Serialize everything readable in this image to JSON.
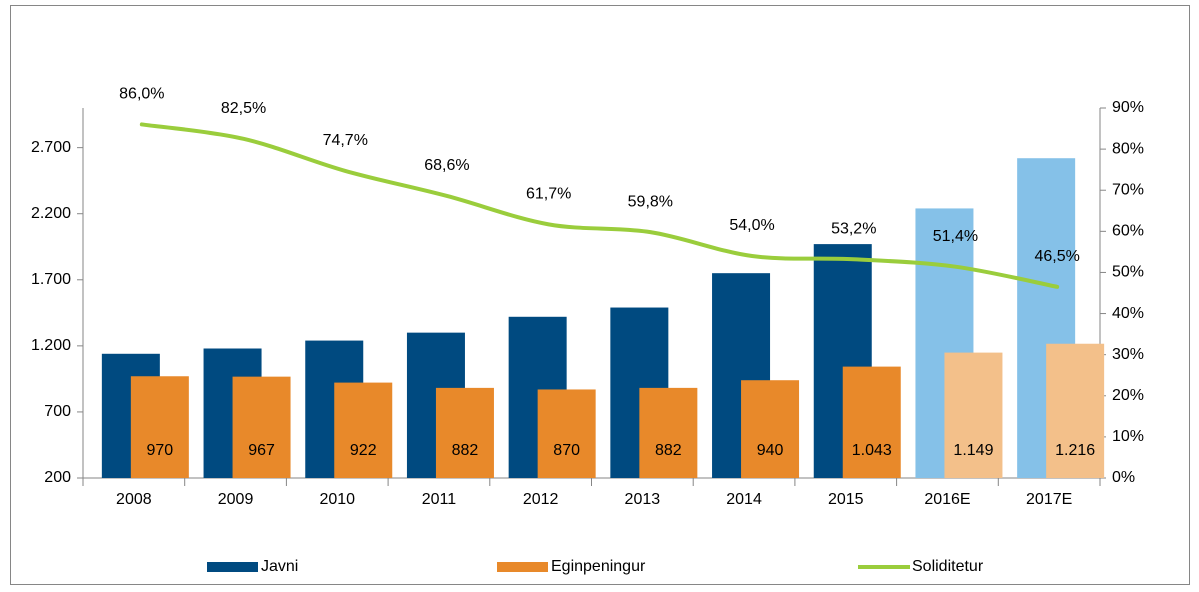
{
  "chart_data": {
    "type": "bar_line",
    "categories": [
      "2008",
      "2009",
      "2010",
      "2011",
      "2012",
      "2013",
      "2014",
      "2015",
      "2016E",
      "2017E"
    ],
    "series": [
      {
        "name": "Javni",
        "type": "bar",
        "color": "#004a80",
        "point_colors": [
          "#004a80",
          "#004a80",
          "#004a80",
          "#004a80",
          "#004a80",
          "#004a80",
          "#004a80",
          "#004a80",
          "#85c1e8",
          "#85c1e8"
        ],
        "values": [
          1140,
          1180,
          1240,
          1300,
          1420,
          1490,
          1750,
          1970,
          2240,
          2620
        ]
      },
      {
        "name": "Eginpeningur",
        "type": "bar",
        "color": "#e8892a",
        "point_colors": [
          "#e8892a",
          "#e8892a",
          "#e8892a",
          "#e8892a",
          "#e8892a",
          "#e8892a",
          "#e8892a",
          "#e8892a",
          "#f3c08a",
          "#f3c08a"
        ],
        "values": [
          970,
          967,
          922,
          882,
          870,
          882,
          940,
          1043,
          1149,
          1216
        ],
        "value_labels": [
          "970",
          "967",
          "922",
          "882",
          "870",
          "882",
          "940",
          "1.043",
          "1.149",
          "1.216"
        ]
      },
      {
        "name": "Soliditetur",
        "type": "line",
        "axis": "y2",
        "color": "#9acd3c",
        "values": [
          86.0,
          82.5,
          74.7,
          68.6,
          61.7,
          59.8,
          54.0,
          53.2,
          51.4,
          46.5
        ],
        "value_labels": [
          "86,0%",
          "82,5%",
          "74,7%",
          "68,6%",
          "61,7%",
          "59,8%",
          "54,0%",
          "53,2%",
          "51,4%",
          "46,5%"
        ]
      }
    ],
    "ylim": [
      200,
      3000
    ],
    "yticks": [
      200,
      700,
      {
        "value": 1200,
        "label": "1.200"
      },
      {
        "value": 1700,
        "label": "1.700"
      },
      {
        "value": 2200,
        "label": "2.200"
      },
      {
        "value": 2700,
        "label": "2.700"
      }
    ],
    "y2lim": [
      0,
      90
    ],
    "y2ticks": [
      {
        "value": 0,
        "label": "0%"
      },
      {
        "value": 10,
        "label": "10%"
      },
      {
        "value": 20,
        "label": "20%"
      },
      {
        "value": 30,
        "label": "30%"
      },
      {
        "value": 40,
        "label": "40%"
      },
      {
        "value": 50,
        "label": "50%"
      },
      {
        "value": 60,
        "label": "60%"
      },
      {
        "value": 70,
        "label": "70%"
      },
      {
        "value": 80,
        "label": "80%"
      },
      {
        "value": 90,
        "label": "90%"
      }
    ],
    "legend": "bottom"
  }
}
